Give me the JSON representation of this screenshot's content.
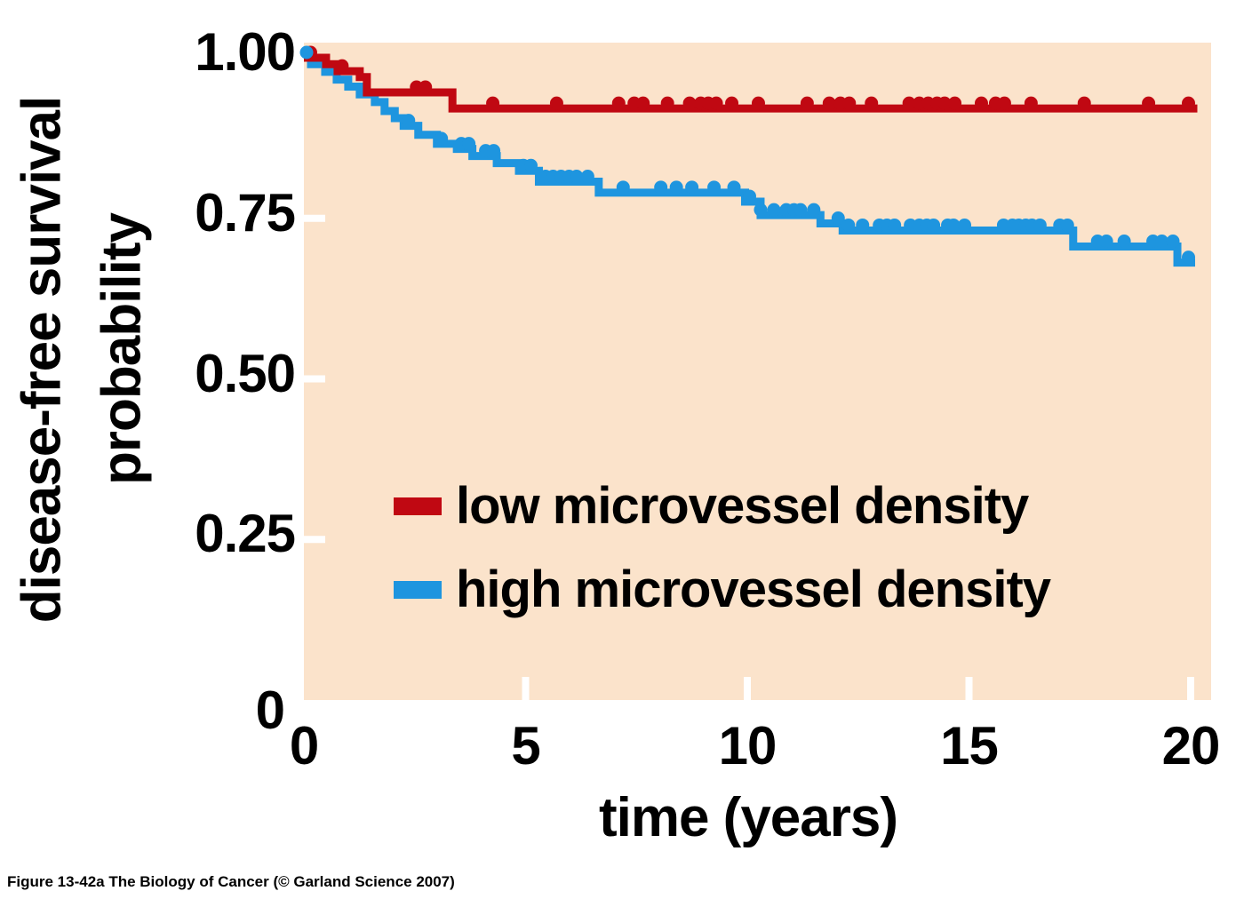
{
  "figure": {
    "caption": "Figure 13-42a  The Biology of Cancer (© Garland Science 2007)"
  },
  "chart_data": {
    "type": "line",
    "subtype": "kaplan-meier-step-curves-with-censor-marks",
    "title": "",
    "xlabel": "time (years)",
    "ylabel_line1": "disease-free survival",
    "ylabel_line2": "probability",
    "xlim": [
      0,
      20
    ],
    "ylim": [
      0,
      1
    ],
    "grid": "off",
    "legend_position": "inside-plot-center",
    "plot_background_color": "#fbe3cb",
    "page_background_color": "#ffffff",
    "x_ticks": [
      {
        "label": "0",
        "value": 0
      },
      {
        "label": "5",
        "value": 5
      },
      {
        "label": "10",
        "value": 10
      },
      {
        "label": "15",
        "value": 15
      },
      {
        "label": "20",
        "value": 20
      }
    ],
    "y_ticks": [
      {
        "label": "1.00",
        "value": 1.0
      },
      {
        "label": "0.75",
        "value": 0.75
      },
      {
        "label": "0.50",
        "value": 0.5
      },
      {
        "label": "0.25",
        "value": 0.25
      },
      {
        "label": "0",
        "value": 0
      }
    ],
    "series": [
      {
        "name": "low microvessel density",
        "color": "#c00812",
        "end_t": 20.15,
        "steps": [
          [
            0,
            1.0
          ],
          [
            0.5,
            0.99
          ],
          [
            0.76,
            0.979
          ],
          [
            1.26,
            0.97
          ],
          [
            1.42,
            0.946
          ],
          [
            3.35,
            0.921
          ]
        ],
        "censor_times": [
          0.15,
          0.86,
          2.54,
          2.74,
          4.26,
          5.7,
          7.1,
          7.45,
          7.65,
          8.2,
          8.7,
          8.95,
          9.12,
          9.3,
          9.65,
          10.25,
          11.35,
          11.85,
          12.1,
          12.3,
          12.8,
          13.65,
          13.88,
          14.08,
          14.28,
          14.45,
          14.68,
          15.28,
          15.6,
          15.8,
          16.4,
          17.6,
          19.05,
          19.95
        ]
      },
      {
        "name": "high microvessel density",
        "color": "#1e95df",
        "end_t": 20.1,
        "steps": [
          [
            0,
            1.0
          ],
          [
            0.16,
            0.99
          ],
          [
            0.48,
            0.978
          ],
          [
            0.74,
            0.966
          ],
          [
            1.0,
            0.955
          ],
          [
            1.26,
            0.943
          ],
          [
            1.6,
            0.931
          ],
          [
            1.82,
            0.917
          ],
          [
            2.05,
            0.906
          ],
          [
            2.25,
            0.894
          ],
          [
            2.58,
            0.88
          ],
          [
            3.0,
            0.866
          ],
          [
            3.45,
            0.858
          ],
          [
            3.8,
            0.847
          ],
          [
            4.35,
            0.836
          ],
          [
            4.85,
            0.824
          ],
          [
            5.3,
            0.807
          ],
          [
            6.65,
            0.79
          ],
          [
            9.95,
            0.776
          ],
          [
            10.3,
            0.755
          ],
          [
            11.65,
            0.742
          ],
          [
            12.15,
            0.731
          ],
          [
            17.35,
            0.706
          ],
          [
            19.7,
            0.681
          ]
        ],
        "censor_times": [
          0.06,
          2.36,
          3.1,
          3.55,
          3.72,
          4.1,
          4.28,
          4.95,
          5.12,
          5.45,
          5.62,
          5.8,
          5.98,
          6.15,
          6.4,
          7.2,
          8.05,
          8.4,
          8.75,
          9.25,
          9.7,
          10.05,
          10.3,
          10.6,
          10.88,
          11.05,
          11.2,
          11.5,
          12.05,
          12.28,
          12.6,
          12.98,
          13.15,
          13.32,
          13.68,
          13.88,
          14.05,
          14.2,
          14.52,
          14.65,
          14.9,
          15.78,
          15.98,
          16.12,
          16.28,
          16.42,
          16.6,
          17.05,
          17.22,
          17.9,
          18.1,
          18.5,
          19.15,
          19.35,
          19.6,
          19.95
        ]
      }
    ]
  }
}
